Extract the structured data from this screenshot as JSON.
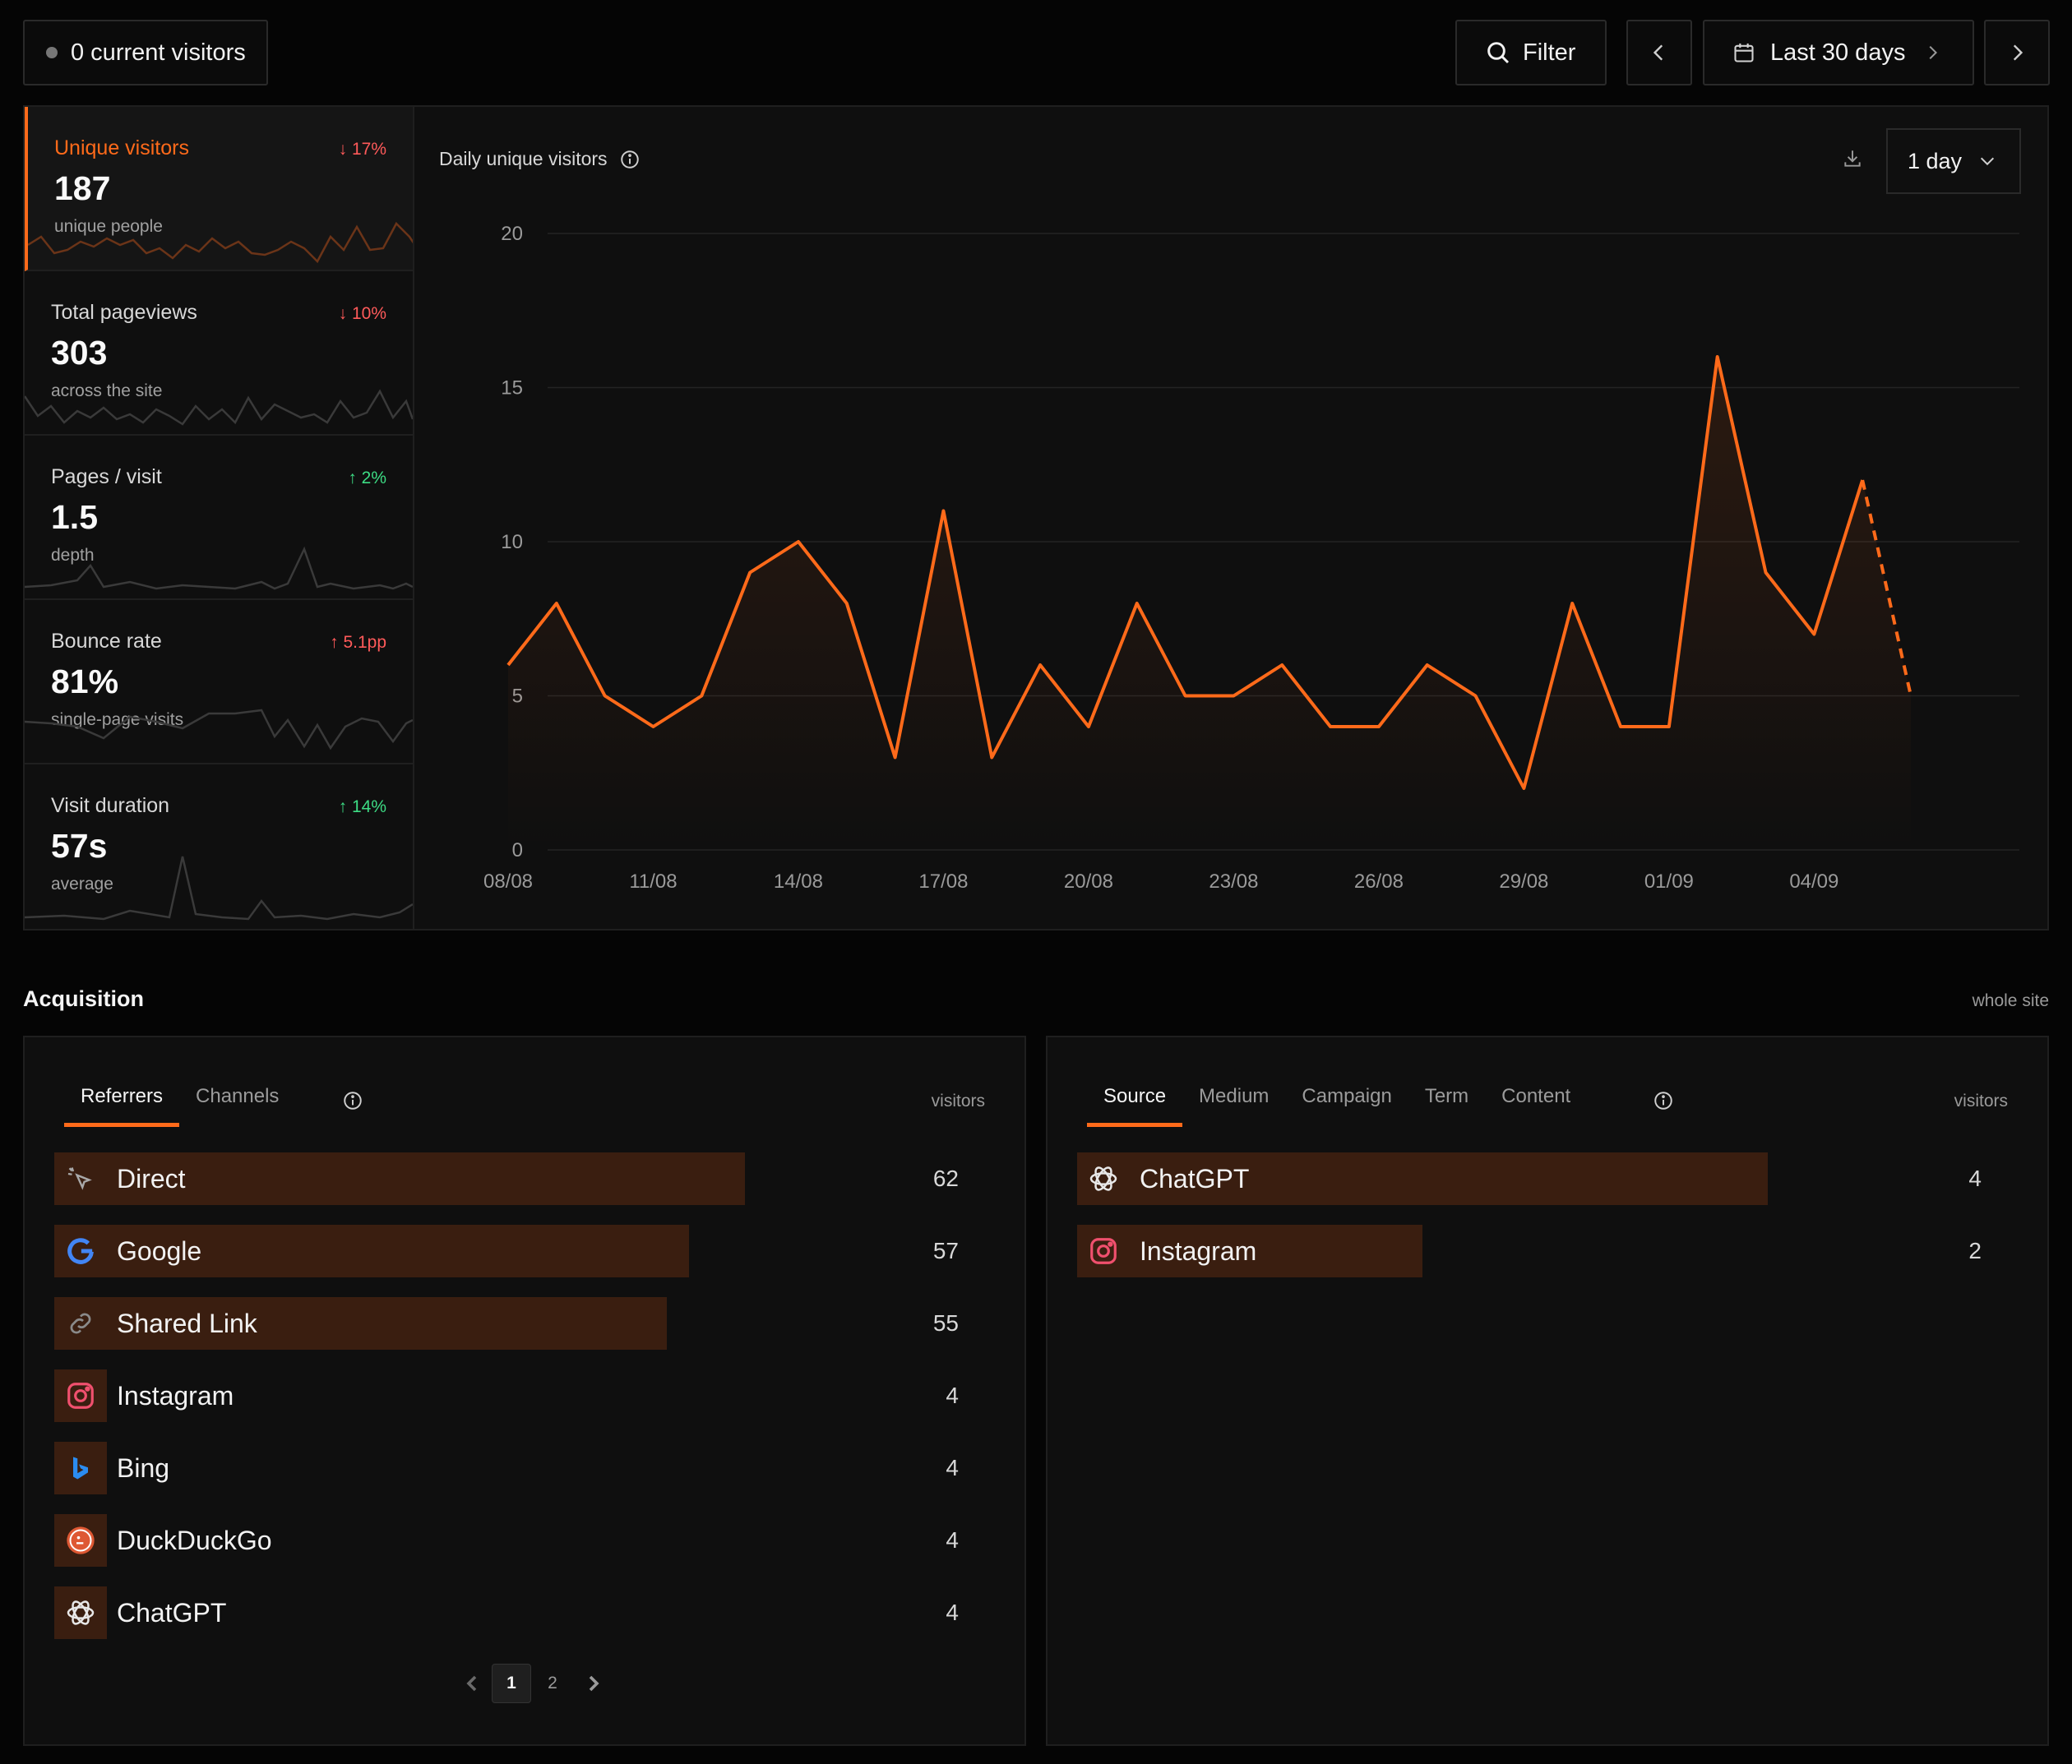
{
  "header": {
    "current_visitors": "0 current visitors",
    "filter_label": "Filter",
    "range_label": "Last 30 days"
  },
  "metrics": [
    {
      "label": "Unique visitors",
      "value": "187",
      "sub": "unique people",
      "delta": "↓ 17%",
      "trend": "down"
    },
    {
      "label": "Total pageviews",
      "value": "303",
      "sub": "across the site",
      "delta": "↓ 10%",
      "trend": "down"
    },
    {
      "label": "Pages / visit",
      "value": "1.5",
      "sub": "depth",
      "delta": "↑ 2%",
      "trend": "up"
    },
    {
      "label": "Bounce rate",
      "value": "81%",
      "sub": "single-page visits",
      "delta": "↑ 5.1pp",
      "trend": "bad-up"
    },
    {
      "label": "Visit duration",
      "value": "57s",
      "sub": "average",
      "delta": "↑ 14%",
      "trend": "up"
    }
  ],
  "chart": {
    "title": "Daily unique visitors",
    "interval_label": "1 day"
  },
  "chart_data": {
    "type": "line",
    "title": "Daily unique visitors",
    "x": [
      "08/08",
      "09/08",
      "10/08",
      "11/08",
      "12/08",
      "13/08",
      "14/08",
      "15/08",
      "16/08",
      "17/08",
      "18/08",
      "19/08",
      "20/08",
      "21/08",
      "22/08",
      "23/08",
      "24/08",
      "25/08",
      "26/08",
      "27/08",
      "28/08",
      "29/08",
      "30/08",
      "31/08",
      "01/09",
      "02/09",
      "03/09",
      "04/09",
      "05/09",
      "06/09"
    ],
    "x_tick_labels": [
      "08/08",
      "11/08",
      "14/08",
      "17/08",
      "20/08",
      "23/08",
      "26/08",
      "29/08",
      "01/09",
      "04/09"
    ],
    "y_ticks": [
      "0",
      "5",
      "10",
      "15",
      "20"
    ],
    "series": [
      {
        "values": [
          6,
          8,
          5,
          4,
          5,
          9,
          10,
          8,
          3,
          11,
          3,
          6,
          4,
          8,
          5,
          5,
          6,
          4,
          4,
          6,
          5,
          2,
          8,
          4,
          4,
          16,
          9,
          7,
          12,
          5
        ]
      }
    ],
    "ylim": [
      0,
      20
    ],
    "last_segment_dashed": true,
    "grid": true,
    "line_color": "#ff6a1a"
  },
  "acquisition": {
    "title": "Acquisition",
    "scope": "whole site",
    "left": {
      "tabs": [
        "Referrers",
        "Channels"
      ],
      "active_tab": "Referrers",
      "col_label": "visitors",
      "rows": [
        {
          "name": "Direct",
          "value": 62,
          "icon": "cursor-icon"
        },
        {
          "name": "Google",
          "value": 57,
          "icon": "google-icon"
        },
        {
          "name": "Shared Link",
          "value": 55,
          "icon": "link-icon"
        },
        {
          "name": "Instagram",
          "value": 4,
          "icon": "instagram-icon"
        },
        {
          "name": "Bing",
          "value": 4,
          "icon": "bing-icon"
        },
        {
          "name": "DuckDuckGo",
          "value": 4,
          "icon": "duckduckgo-icon"
        },
        {
          "name": "ChatGPT",
          "value": 4,
          "icon": "chatgpt-icon"
        }
      ],
      "pages": [
        "1",
        "2"
      ],
      "current_page": "1"
    },
    "right": {
      "tabs": [
        "Source",
        "Medium",
        "Campaign",
        "Term",
        "Content"
      ],
      "active_tab": "Source",
      "col_label": "visitors",
      "rows": [
        {
          "name": "ChatGPT",
          "value": 4,
          "icon": "chatgpt-icon"
        },
        {
          "name": "Instagram",
          "value": 2,
          "icon": "instagram-icon"
        }
      ]
    }
  },
  "colors": {
    "accent": "#ff6a1a",
    "bar": "#3a1e10",
    "down": "#ff5a5a",
    "up": "#3ddc84"
  }
}
